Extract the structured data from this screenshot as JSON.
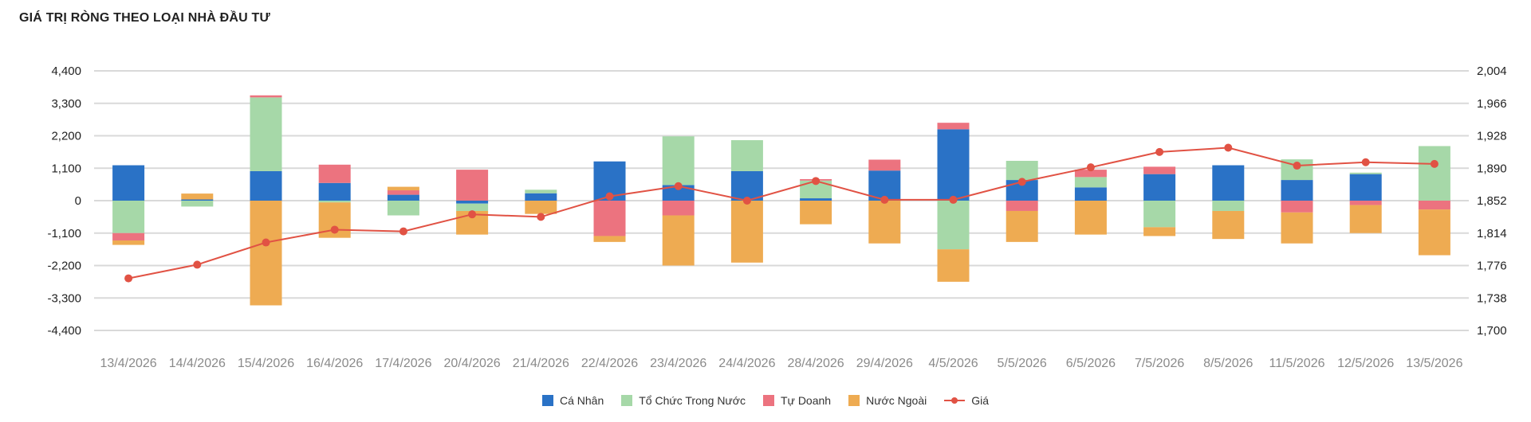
{
  "chart_data": {
    "type": "bar",
    "title": "GIÁ TRỊ RÒNG THEO LOẠI NHÀ ĐẦU TƯ",
    "stacked": true,
    "categories": [
      "13/4/2026",
      "14/4/2026",
      "15/4/2026",
      "16/4/2026",
      "17/4/2026",
      "20/4/2026",
      "21/4/2026",
      "22/4/2026",
      "23/4/2026",
      "24/4/2026",
      "28/4/2026",
      "29/4/2026",
      "4/5/2026",
      "5/5/2026",
      "6/5/2026",
      "7/5/2026",
      "8/5/2026",
      "11/5/2026",
      "12/5/2026",
      "13/5/2026"
    ],
    "y_left": {
      "ylim": [
        -4400,
        4400
      ],
      "ticks": [
        4400,
        3300,
        2200,
        1100,
        0,
        -1100,
        -2200,
        -3300,
        -4400
      ],
      "tick_labels": [
        "4,400",
        "3,300",
        "2,200",
        "1,100",
        "0",
        "-1,100",
        "-2,200",
        "-3,300",
        "-4,400"
      ]
    },
    "y_right": {
      "ylim": [
        1700,
        2004
      ],
      "ticks": [
        2004,
        1966,
        1928,
        1890,
        1852,
        1814,
        1776,
        1738,
        1700
      ],
      "tick_labels": [
        "2,004",
        "1,966",
        "1,928",
        "1,890",
        "1,852",
        "1,814",
        "1,776",
        "1,738",
        "1,700"
      ]
    },
    "series": [
      {
        "name": "Cá Nhân",
        "color": "#2a72c6",
        "values": [
          1200,
          40,
          1000,
          600,
          200,
          -100,
          250,
          1330,
          530,
          1000,
          80,
          1020,
          2420,
          700,
          450,
          900,
          1200,
          700,
          900,
          0
        ]
      },
      {
        "name": "Tổ Chức Trong Nước",
        "color": "#a6d8a8",
        "values": [
          -1100,
          -200,
          2500,
          -60,
          -500,
          -250,
          120,
          0,
          1650,
          1050,
          600,
          0,
          -1650,
          650,
          350,
          -900,
          -350,
          700,
          50,
          1850
        ]
      },
      {
        "name": "Tự Doanh",
        "color": "#ec737f",
        "values": [
          -250,
          0,
          70,
          620,
          150,
          1050,
          0,
          -1200,
          -500,
          0,
          50,
          370,
          220,
          -350,
          250,
          250,
          0,
          -400,
          -150,
          -300
        ]
      },
      {
        "name": "Nước Ngoài",
        "color": "#eeab52",
        "values": [
          -150,
          200,
          -3550,
          -1200,
          120,
          -800,
          -450,
          -200,
          -1700,
          -2100,
          -800,
          -1450,
          -1100,
          -1050,
          -1150,
          -300,
          -950,
          -1050,
          -950,
          -1550
        ]
      }
    ],
    "line": {
      "name": "Giá",
      "color": "#e15244",
      "axis": "right",
      "values": [
        1761,
        1777,
        1803,
        1818,
        1816,
        1836,
        1833,
        1857,
        1869,
        1852,
        1875,
        1853,
        1853,
        1874,
        1891,
        1909,
        1914,
        1893,
        1897,
        1895
      ]
    },
    "grid": true,
    "legend": "bottom-center"
  }
}
